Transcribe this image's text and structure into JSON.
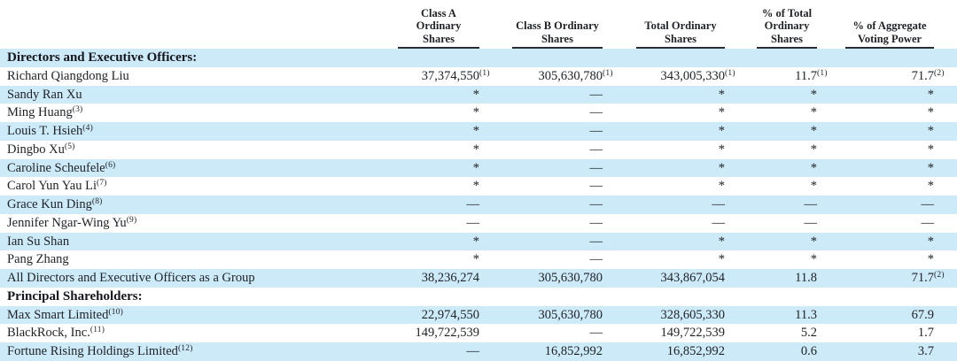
{
  "page": {
    "stripe_color": "#cdeaf8",
    "text_color": "#1e2126",
    "rule_color": "#2b2d33"
  },
  "table": {
    "column_headers": [
      {
        "id": "class-a-ordinary-shares",
        "lines": [
          "Class A",
          "Ordinary",
          "Shares"
        ]
      },
      {
        "id": "class-b-ordinary-shares",
        "lines": [
          "Class B Ordinary",
          "Shares"
        ]
      },
      {
        "id": "total-ordinary-shares",
        "lines": [
          "Total Ordinary",
          "Shares"
        ]
      },
      {
        "id": "pct-total-ordinary-shares",
        "lines": [
          "% of Total",
          "Ordinary",
          "Shares"
        ]
      },
      {
        "id": "pct-aggregate-voting-power",
        "lines": [
          "% of Aggregate",
          "Voting Power"
        ]
      }
    ],
    "rows": [
      {
        "type": "section",
        "shaded": true,
        "label": "Directors and Executive Officers:"
      },
      {
        "type": "data",
        "shaded": false,
        "label": "Richard Qiangdong Liu",
        "label_fn": "",
        "cells": [
          {
            "v": "37,374,550",
            "fn": "(1)"
          },
          {
            "v": "305,630,780",
            "fn": "(1)"
          },
          {
            "v": "343,005,330",
            "fn": "(1)"
          },
          {
            "v": "11.7",
            "fn": "(1)"
          },
          {
            "v": "71.7",
            "fn": "(2)"
          }
        ]
      },
      {
        "type": "data",
        "shaded": true,
        "label": "Sandy Ran Xu",
        "label_fn": "",
        "cells": [
          {
            "v": "*",
            "fn": ""
          },
          {
            "v": "—",
            "fn": ""
          },
          {
            "v": "*",
            "fn": ""
          },
          {
            "v": "*",
            "fn": ""
          },
          {
            "v": "*",
            "fn": ""
          }
        ]
      },
      {
        "type": "data",
        "shaded": false,
        "label": "Ming Huang",
        "label_fn": "(3)",
        "cells": [
          {
            "v": "*",
            "fn": ""
          },
          {
            "v": "—",
            "fn": ""
          },
          {
            "v": "*",
            "fn": ""
          },
          {
            "v": "*",
            "fn": ""
          },
          {
            "v": "*",
            "fn": ""
          }
        ]
      },
      {
        "type": "data",
        "shaded": true,
        "label": "Louis T. Hsieh",
        "label_fn": "(4)",
        "cells": [
          {
            "v": "*",
            "fn": ""
          },
          {
            "v": "—",
            "fn": ""
          },
          {
            "v": "*",
            "fn": ""
          },
          {
            "v": "*",
            "fn": ""
          },
          {
            "v": "*",
            "fn": ""
          }
        ]
      },
      {
        "type": "data",
        "shaded": false,
        "label": "Dingbo Xu",
        "label_fn": "(5)",
        "cells": [
          {
            "v": "*",
            "fn": ""
          },
          {
            "v": "—",
            "fn": ""
          },
          {
            "v": "*",
            "fn": ""
          },
          {
            "v": "*",
            "fn": ""
          },
          {
            "v": "*",
            "fn": ""
          }
        ]
      },
      {
        "type": "data",
        "shaded": true,
        "label": "Caroline Scheufele",
        "label_fn": "(6)",
        "cells": [
          {
            "v": "*",
            "fn": ""
          },
          {
            "v": "—",
            "fn": ""
          },
          {
            "v": "*",
            "fn": ""
          },
          {
            "v": "*",
            "fn": ""
          },
          {
            "v": "*",
            "fn": ""
          }
        ]
      },
      {
        "type": "data",
        "shaded": false,
        "label": "Carol Yun Yau Li",
        "label_fn": "(7)",
        "cells": [
          {
            "v": "*",
            "fn": ""
          },
          {
            "v": "—",
            "fn": ""
          },
          {
            "v": "*",
            "fn": ""
          },
          {
            "v": "*",
            "fn": ""
          },
          {
            "v": "*",
            "fn": ""
          }
        ]
      },
      {
        "type": "data",
        "shaded": true,
        "label": "Grace Kun Ding",
        "label_fn": "(8)",
        "cells": [
          {
            "v": "—",
            "fn": ""
          },
          {
            "v": "—",
            "fn": ""
          },
          {
            "v": "—",
            "fn": ""
          },
          {
            "v": "—",
            "fn": ""
          },
          {
            "v": "—",
            "fn": ""
          }
        ]
      },
      {
        "type": "data",
        "shaded": false,
        "label": "Jennifer Ngar-Wing Yu",
        "label_fn": "(9)",
        "cells": [
          {
            "v": "—",
            "fn": ""
          },
          {
            "v": "—",
            "fn": ""
          },
          {
            "v": "—",
            "fn": ""
          },
          {
            "v": "—",
            "fn": ""
          },
          {
            "v": "—",
            "fn": ""
          }
        ]
      },
      {
        "type": "data",
        "shaded": true,
        "label": "Ian Su Shan",
        "label_fn": "",
        "cells": [
          {
            "v": "*",
            "fn": ""
          },
          {
            "v": "—",
            "fn": ""
          },
          {
            "v": "*",
            "fn": ""
          },
          {
            "v": "*",
            "fn": ""
          },
          {
            "v": "*",
            "fn": ""
          }
        ]
      },
      {
        "type": "data",
        "shaded": false,
        "label": "Pang Zhang",
        "label_fn": "",
        "cells": [
          {
            "v": "*",
            "fn": ""
          },
          {
            "v": "—",
            "fn": ""
          },
          {
            "v": "*",
            "fn": ""
          },
          {
            "v": "*",
            "fn": ""
          },
          {
            "v": "*",
            "fn": ""
          }
        ]
      },
      {
        "type": "data",
        "shaded": true,
        "label": "All Directors and Executive Officers as a Group",
        "label_fn": "",
        "cells": [
          {
            "v": "38,236,274",
            "fn": ""
          },
          {
            "v": "305,630,780",
            "fn": ""
          },
          {
            "v": "343,867,054",
            "fn": ""
          },
          {
            "v": "11.8",
            "fn": ""
          },
          {
            "v": "71.7",
            "fn": "(2)"
          }
        ]
      },
      {
        "type": "section",
        "shaded": false,
        "label": "Principal Shareholders:"
      },
      {
        "type": "data",
        "shaded": true,
        "label": "Max Smart Limited",
        "label_fn": "(10)",
        "cells": [
          {
            "v": "22,974,550",
            "fn": ""
          },
          {
            "v": "305,630,780",
            "fn": ""
          },
          {
            "v": "328,605,330",
            "fn": ""
          },
          {
            "v": "11.3",
            "fn": ""
          },
          {
            "v": "67.9",
            "fn": ""
          }
        ]
      },
      {
        "type": "data",
        "shaded": false,
        "label": "BlackRock, Inc.",
        "label_fn": "(11)",
        "cells": [
          {
            "v": "149,722,539",
            "fn": ""
          },
          {
            "v": "—",
            "fn": ""
          },
          {
            "v": "149,722,539",
            "fn": ""
          },
          {
            "v": "5.2",
            "fn": ""
          },
          {
            "v": "1.7",
            "fn": ""
          }
        ]
      },
      {
        "type": "data",
        "shaded": true,
        "label": "Fortune Rising Holdings Limited",
        "label_fn": "(12)",
        "cells": [
          {
            "v": "—",
            "fn": ""
          },
          {
            "v": "16,852,992",
            "fn": ""
          },
          {
            "v": "16,852,992",
            "fn": ""
          },
          {
            "v": "0.6",
            "fn": ""
          },
          {
            "v": "3.7",
            "fn": ""
          }
        ]
      }
    ]
  }
}
